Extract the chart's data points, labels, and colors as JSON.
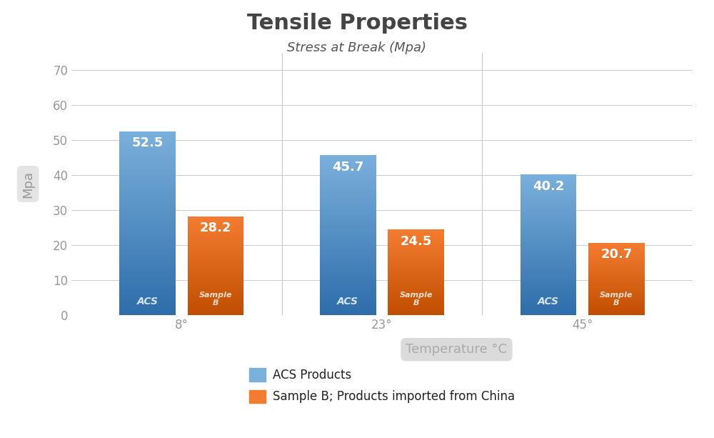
{
  "title": "Tensile Properties",
  "subtitle": "Stress at Break (Mpa)",
  "xlabel": "Temperature °C",
  "ylabel": "Mpa",
  "temperatures": [
    "8°",
    "23°",
    "45°"
  ],
  "acs_values": [
    52.5,
    45.7,
    40.2
  ],
  "sample_b_values": [
    28.2,
    24.5,
    20.7
  ],
  "acs_color_top": "#7ab0dc",
  "acs_color_bottom": "#2e6daa",
  "sample_b_color_top": "#f47c30",
  "sample_b_color_bottom": "#c04e00",
  "ylim": [
    0,
    75
  ],
  "yticks": [
    0,
    10,
    20,
    30,
    40,
    50,
    60,
    70
  ],
  "legend_acs": "ACS Products",
  "legend_sample_b_prefix": "Sample B; ",
  "legend_sample_b_bold": "Products",
  "legend_sample_b_suffix": " imported from China",
  "bg_color": "#ffffff",
  "grid_color": "#cccccc",
  "bar_width": 0.28,
  "title_fontsize": 22,
  "subtitle_fontsize": 13,
  "xlabel_fontsize": 13,
  "ylabel_fontsize": 13,
  "value_fontsize": 13,
  "tick_fontsize": 12,
  "ylabel_color": "#bbbbbb",
  "tick_color": "#999999",
  "xlabel_bg": "#d8d8d8",
  "xlabel_text_color": "#aaaaaa"
}
